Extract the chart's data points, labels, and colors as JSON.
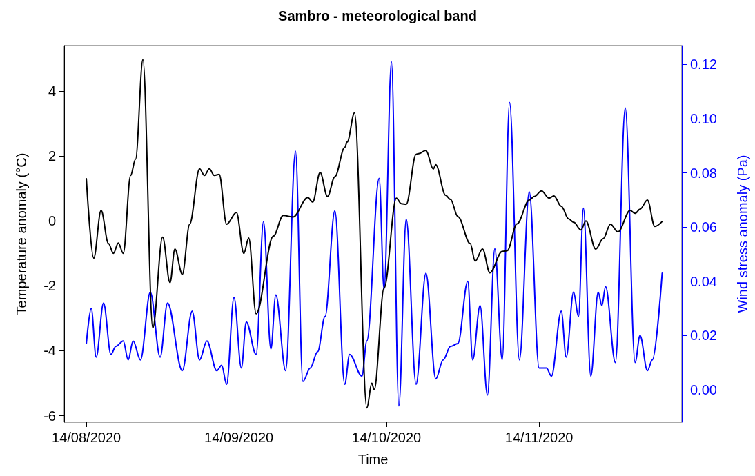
{
  "chart_data": {
    "type": "line",
    "title": "Sambro - meteorological band",
    "xlabel": "Time",
    "ylabel": "Temperature anomaly (°C)",
    "y2label": "Wind stress anomaly (Pa)",
    "xlim": [
      "2020-08-09T12:00",
      "2020-12-13"
    ],
    "xticks": [
      {
        "value": "2020-08-14",
        "label": "14/08/2020"
      },
      {
        "value": "2020-09-14",
        "label": "14/09/2020"
      },
      {
        "value": "2020-10-14",
        "label": "14/10/2020"
      },
      {
        "value": "2020-11-14",
        "label": "14/11/2020"
      }
    ],
    "ylim": [
      -6.2,
      5.4
    ],
    "yticks": [
      -6,
      -4,
      -2,
      0,
      2,
      4
    ],
    "y2lim": [
      -0.012,
      0.127
    ],
    "y2ticks": [
      {
        "value": 0,
        "label": "0.00"
      },
      {
        "value": 0.02,
        "label": "0.02"
      },
      {
        "value": 0.04,
        "label": "0.04"
      },
      {
        "value": 0.06,
        "label": "0.06"
      },
      {
        "value": 0.08,
        "label": "0.08"
      },
      {
        "value": 0.1,
        "label": "0.10"
      },
      {
        "value": 0.12,
        "label": "0.12"
      }
    ],
    "grid": false,
    "marker": "none",
    "line_style": "solid",
    "series": [
      {
        "color": "#000000",
        "x": [
          "2020-08-14",
          "2020-08-15T12:00",
          "2020-08-17",
          "2020-08-18T12:00",
          "2020-08-19T12:00",
          "2020-08-20T12:00",
          "2020-08-21T12:00",
          "2020-08-23",
          "2020-08-24",
          "2020-08-25T12:00",
          "2020-08-27T12:00",
          "2020-08-29T12:00",
          "2020-08-31",
          "2020-09-01",
          "2020-09-02T12:00",
          "2020-09-04",
          "2020-09-06",
          "2020-09-07",
          "2020-09-08",
          "2020-09-09",
          "2020-09-10",
          "2020-09-11T12:00",
          "2020-09-13T12:00",
          "2020-09-15",
          "2020-09-16",
          "2020-09-17T12:00",
          "2020-09-21",
          "2020-09-23",
          "2020-09-25",
          "2020-09-28",
          "2020-09-29",
          "2020-09-30T12:00",
          "2020-10-02",
          "2020-10-03T12:00",
          "2020-10-05T12:00",
          "2020-10-06",
          "2020-10-07T12:00",
          "2020-10-10",
          "2020-10-11",
          "2020-10-11T12:00",
          "2020-10-13T12:00",
          "2020-10-16",
          "2020-10-17",
          "2020-10-18",
          "2020-10-20",
          "2020-10-20T12:00",
          "2020-10-22",
          "2020-10-23T12:00",
          "2020-10-24",
          "2020-10-26",
          "2020-10-27",
          "2020-10-28T12:00",
          "2020-10-31",
          "2020-11-01",
          "2020-11-02T12:00",
          "2020-11-04",
          "2020-11-06T12:00",
          "2020-11-07T12:00",
          "2020-11-09T12:00",
          "2020-11-12",
          "2020-11-13",
          "2020-11-14T12:00",
          "2020-11-16",
          "2020-11-17",
          "2020-11-18T12:00",
          "2020-11-20",
          "2020-11-21",
          "2020-11-22T12:00",
          "2020-11-23T12:00",
          "2020-11-25T12:00",
          "2020-11-27",
          "2020-11-28T12:00",
          "2020-11-30",
          "2020-12-02T12:00",
          "2020-12-03T12:00",
          "2020-12-04T12:00",
          "2020-12-06",
          "2020-12-07T12:00",
          "2020-12-09"
        ],
        "values": [
          1.3,
          -1.15,
          0.32,
          -0.7,
          -1.0,
          -0.68,
          -1.0,
          1.4,
          1.9,
          4.97,
          -3.3,
          -0.5,
          -1.9,
          -0.87,
          -1.65,
          -0.1,
          1.6,
          1.4,
          1.6,
          1.4,
          1.43,
          -0.1,
          0.26,
          -1.0,
          -0.53,
          -2.86,
          -0.47,
          0.17,
          0.12,
          0.72,
          0.58,
          1.49,
          0.75,
          1.36,
          2.26,
          2.43,
          3.33,
          -5.76,
          -5.0,
          -5.2,
          -2.07,
          0.7,
          0.53,
          0.51,
          2.05,
          2.07,
          2.17,
          1.6,
          1.73,
          0.79,
          0.66,
          0.13,
          -0.7,
          -1.24,
          -0.87,
          -1.6,
          -0.94,
          -0.92,
          -0.09,
          0.64,
          0.75,
          0.92,
          0.7,
          0.77,
          0.45,
          0.06,
          -0.04,
          -0.28,
          0,
          -0.87,
          -0.55,
          -0.1,
          -0.34,
          0.32,
          0.23,
          0.36,
          0.64,
          -0.17,
          -0.02
        ]
      },
      {
        "color": "#0000ff",
        "axis": "y2",
        "x": [
          "2020-08-14",
          "2020-08-15",
          "2020-08-16",
          "2020-08-17T12:00",
          "2020-08-19",
          "2020-08-20",
          "2020-08-21T12:00",
          "2020-08-22T12:00",
          "2020-08-23T12:00",
          "2020-08-25",
          "2020-08-27",
          "2020-08-29",
          "2020-08-30T12:00",
          "2020-09-02T12:00",
          "2020-09-04T12:00",
          "2020-09-06",
          "2020-09-07T12:00",
          "2020-09-09T12:00",
          "2020-09-10T12:00",
          "2020-09-11T12:00",
          "2020-09-13",
          "2020-09-14T12:00",
          "2020-09-15T12:00",
          "2020-09-17T12:00",
          "2020-09-19",
          "2020-09-20T12:00",
          "2020-09-21T12:00",
          "2020-09-23T12:00",
          "2020-09-25T12:00",
          "2020-09-27",
          "2020-09-28T12:00",
          "2020-09-30",
          "2020-10-01T12:00",
          "2020-10-03T12:00",
          "2020-10-05T12:00",
          "2020-10-06T12:00",
          "2020-10-09",
          "2020-10-10",
          "2020-10-12T12:00",
          "2020-10-13T12:00",
          "2020-10-15",
          "2020-10-16T12:00",
          "2020-10-18",
          "2020-10-20",
          "2020-10-22",
          "2020-10-24",
          "2020-10-25T12:00",
          "2020-10-27",
          "2020-10-28T12:00",
          "2020-10-30T12:00",
          "2020-10-31T12:00",
          "2020-11-02",
          "2020-11-03T12:00",
          "2020-11-05",
          "2020-11-06T12:00",
          "2020-11-08",
          "2020-11-10",
          "2020-11-12",
          "2020-11-14",
          "2020-11-15T12:00",
          "2020-11-16T12:00",
          "2020-11-18T12:00",
          "2020-11-19T12:00",
          "2020-11-21",
          "2020-11-22",
          "2020-11-23",
          "2020-11-24T12:00",
          "2020-11-26",
          "2020-11-26T18:00",
          "2020-11-27T12:00",
          "2020-11-29T12:00",
          "2020-12-01T12:00",
          "2020-12-03T12:00",
          "2020-12-04T12:00",
          "2020-12-06",
          "2020-12-07",
          "2020-12-09"
        ],
        "values": [
          0.017,
          0.03,
          0.012,
          0.032,
          0.013,
          0.016,
          0.018,
          0.011,
          0.018,
          0.011,
          0.036,
          0.012,
          0.032,
          0.007,
          0.029,
          0.011,
          0.018,
          0.007,
          0.009,
          0.002,
          0.034,
          0.008,
          0.025,
          0.013,
          0.062,
          0.015,
          0.035,
          0.007,
          0.088,
          0.003,
          0.008,
          0.014,
          0.027,
          0.066,
          0.002,
          0.013,
          0.005,
          0.018,
          0.078,
          0.037,
          0.121,
          -0.006,
          0.063,
          0.002,
          0.043,
          0.004,
          0.011,
          0.016,
          0.017,
          0.04,
          0.011,
          0.031,
          -0.002,
          0.052,
          0.011,
          0.106,
          0.011,
          0.073,
          0.008,
          0.008,
          0.005,
          0.029,
          0.012,
          0.036,
          0.027,
          0.067,
          0.005,
          0.036,
          0.031,
          0.038,
          0.01,
          0.104,
          0.01,
          0.02,
          0.007,
          0.011,
          0.043
        ]
      }
    ]
  }
}
